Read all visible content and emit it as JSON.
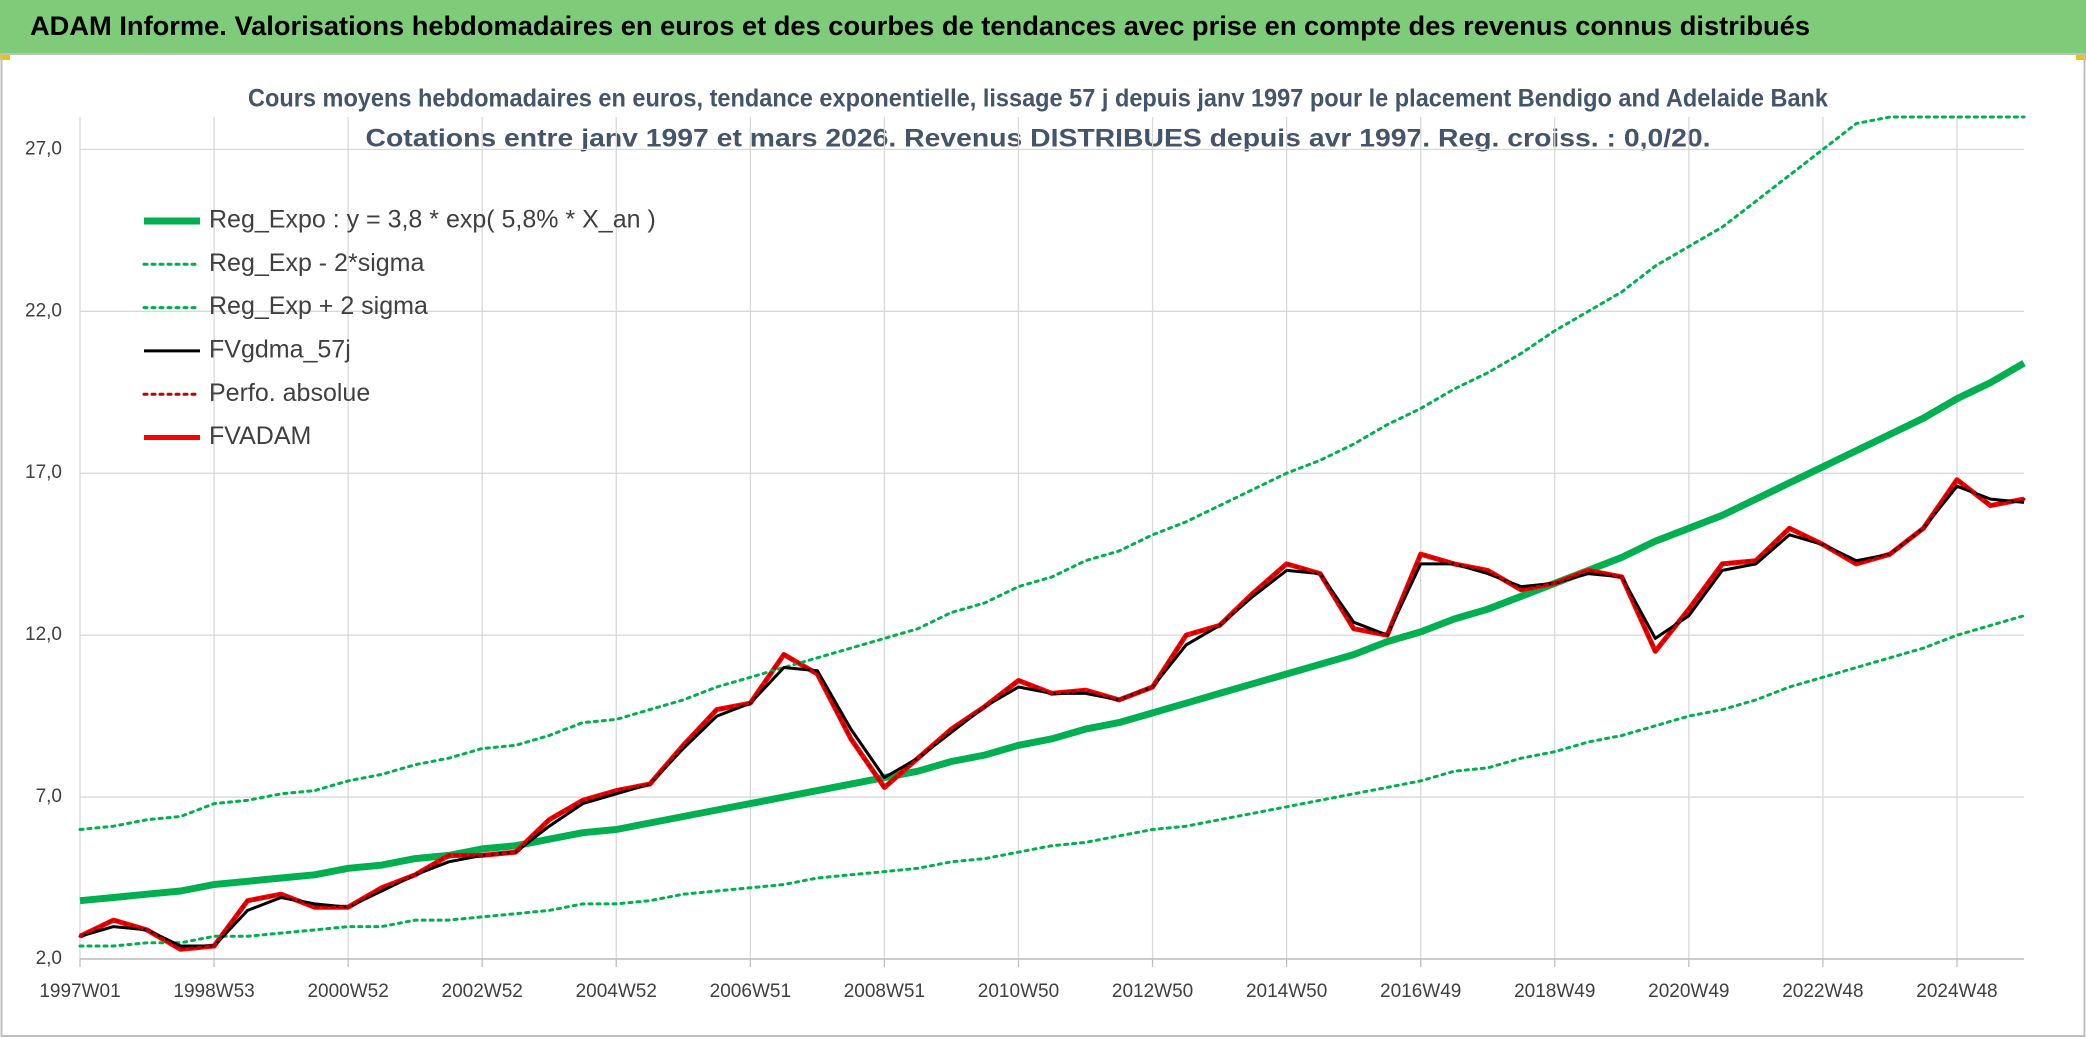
{
  "chart_data": {
    "type": "line",
    "header": "ADAM Informe. Valorisations hebdomadaires en euros et des courbes de tendances avec prise en compte des revenus connus distribués",
    "title": "Cours moyens hebdomadaires en euros, tendance exponentielle, lissage 57 j depuis janv 1997 pour le placement Bendigo and Adelaide Bank",
    "subtitle": "Cotations entre janv 1997 et mars 2026. Revenus DISTRIBUES depuis avr 1997. Reg. croiss. : 0,0/20.",
    "categories": [
      "1997W01",
      null,
      null,
      null,
      "1998W53",
      null,
      null,
      null,
      "2000W52",
      null,
      null,
      null,
      "2002W52",
      null,
      null,
      null,
      "2004W52",
      null,
      null,
      null,
      "2006W51",
      null,
      null,
      null,
      "2008W51",
      null,
      null,
      null,
      "2010W50",
      null,
      null,
      null,
      "2012W50",
      null,
      null,
      null,
      "2014W50",
      null,
      null,
      null,
      "2016W49",
      null,
      null,
      null,
      "2018W49",
      null,
      null,
      null,
      "2020W49",
      null,
      null,
      null,
      "2022W48",
      null,
      null,
      null,
      "2024W48",
      null,
      null
    ],
    "ylim": [
      2,
      28
    ],
    "yticks": [
      {
        "value": 2,
        "label": "2,0"
      },
      {
        "value": 7,
        "label": "7,0"
      },
      {
        "value": 12,
        "label": "12,0"
      },
      {
        "value": 17,
        "label": "17,0"
      },
      {
        "value": 22,
        "label": "22,0"
      },
      {
        "value": 27,
        "label": "27,0"
      }
    ],
    "grid": true,
    "legend": "upper left",
    "series": [
      {
        "name": "Reg_Expo : y = 3,8 * exp( 5,8% *  X_an )",
        "color": "#00b050",
        "line_style": "solid",
        "weight": "bold",
        "values": [
          3.8,
          3.9,
          4.0,
          4.1,
          4.3,
          4.4,
          4.5,
          4.6,
          4.8,
          4.9,
          5.1,
          5.2,
          5.4,
          5.5,
          5.7,
          5.9,
          6.0,
          6.2,
          6.4,
          6.6,
          6.8,
          7.0,
          7.2,
          7.4,
          7.6,
          7.8,
          8.1,
          8.3,
          8.6,
          8.8,
          9.1,
          9.3,
          9.6,
          9.9,
          10.2,
          10.5,
          10.8,
          11.1,
          11.4,
          11.8,
          12.1,
          12.5,
          12.8,
          13.2,
          13.6,
          14.0,
          14.4,
          14.9,
          15.3,
          15.7,
          16.2,
          16.7,
          17.2,
          17.7,
          18.2,
          18.7,
          19.3,
          19.8,
          20.4
        ]
      },
      {
        "name": "Reg_Exp - 2*sigma",
        "color": "#00b050",
        "line_style": "dotted",
        "weight": "normal",
        "values": [
          2.4,
          2.4,
          2.5,
          2.5,
          2.7,
          2.7,
          2.8,
          2.9,
          3.0,
          3.0,
          3.2,
          3.2,
          3.3,
          3.4,
          3.5,
          3.7,
          3.7,
          3.8,
          4.0,
          4.1,
          4.2,
          4.3,
          4.5,
          4.6,
          4.7,
          4.8,
          5.0,
          5.1,
          5.3,
          5.5,
          5.6,
          5.8,
          6.0,
          6.1,
          6.3,
          6.5,
          6.7,
          6.9,
          7.1,
          7.3,
          7.5,
          7.8,
          7.9,
          8.2,
          8.4,
          8.7,
          8.9,
          9.2,
          9.5,
          9.7,
          10.0,
          10.4,
          10.7,
          11.0,
          11.3,
          11.6,
          12.0,
          12.3,
          12.6
        ]
      },
      {
        "name": "Reg_Exp + 2 sigma",
        "color": "#00b050",
        "line_style": "dotted",
        "weight": "normal",
        "values": [
          6.0,
          6.1,
          6.3,
          6.4,
          6.8,
          6.9,
          7.1,
          7.2,
          7.5,
          7.7,
          8.0,
          8.2,
          8.5,
          8.6,
          8.9,
          9.3,
          9.4,
          9.7,
          10.0,
          10.4,
          10.7,
          11.0,
          11.3,
          11.6,
          11.9,
          12.2,
          12.7,
          13.0,
          13.5,
          13.8,
          14.3,
          14.6,
          15.1,
          15.5,
          16.0,
          16.5,
          17.0,
          17.4,
          17.9,
          18.5,
          19.0,
          19.6,
          20.1,
          20.7,
          21.4,
          22.0,
          22.6,
          23.4,
          24.0,
          24.6,
          25.4,
          26.2,
          27.0,
          27.8,
          28,
          28,
          28,
          28,
          28
        ]
      },
      {
        "name": "FVgdma_57j",
        "color": "#000000",
        "line_style": "solid",
        "weight": "normal",
        "values": [
          2.7,
          3.0,
          2.9,
          2.4,
          2.4,
          3.5,
          3.9,
          3.7,
          3.6,
          4.1,
          4.6,
          5.0,
          5.2,
          5.3,
          6.1,
          6.8,
          7.1,
          7.4,
          8.5,
          9.5,
          9.9,
          11.0,
          10.9,
          9.1,
          7.6,
          8.2,
          9.0,
          9.8,
          10.4,
          10.2,
          10.2,
          10.0,
          10.4,
          11.7,
          12.3,
          13.2,
          14.0,
          13.9,
          12.4,
          12.0,
          14.2,
          14.2,
          13.9,
          13.5,
          13.6,
          13.9,
          13.8,
          11.9,
          12.6,
          14.0,
          14.2,
          15.1,
          14.8,
          14.3,
          14.5,
          15.3,
          16.6,
          16.2,
          16.1
        ]
      },
      {
        "name": "Perfo. absolue",
        "color": "#c00000",
        "line_style": "dotted",
        "weight": "normal",
        "values": [
          2.7,
          3.2,
          2.9,
          2.3,
          2.4,
          3.8,
          4.0,
          3.6,
          3.6,
          4.2,
          4.6,
          5.2,
          5.2,
          5.3,
          6.3,
          6.9,
          7.2,
          7.4,
          8.6,
          9.7,
          9.9,
          11.4,
          10.8,
          8.8,
          7.3,
          8.2,
          9.1,
          9.8,
          10.6,
          10.2,
          10.3,
          10.0,
          10.4,
          12.0,
          12.3,
          13.3,
          14.2,
          13.9,
          12.2,
          12.0,
          14.5,
          14.2,
          14.0,
          13.4,
          13.6,
          14.0,
          13.8,
          11.5,
          12.8,
          14.2,
          14.3,
          15.3,
          14.8,
          14.2,
          14.5,
          15.3,
          16.8,
          16.0,
          16.2
        ]
      },
      {
        "name": "FVADAM",
        "color": "#ff0000",
        "line_style": "solid",
        "weight": "bold",
        "values": [
          2.7,
          3.2,
          2.9,
          2.3,
          2.4,
          3.8,
          4.0,
          3.6,
          3.6,
          4.2,
          4.6,
          5.2,
          5.2,
          5.3,
          6.3,
          6.9,
          7.2,
          7.4,
          8.6,
          9.7,
          9.9,
          11.4,
          10.8,
          8.8,
          7.3,
          8.2,
          9.1,
          9.8,
          10.6,
          10.2,
          10.3,
          10.0,
          10.4,
          12.0,
          12.3,
          13.3,
          14.2,
          13.9,
          12.2,
          12.0,
          14.5,
          14.2,
          14.0,
          13.4,
          13.6,
          14.0,
          13.8,
          11.5,
          12.8,
          14.2,
          14.3,
          15.3,
          14.8,
          14.2,
          14.5,
          15.3,
          16.8,
          16.0,
          16.2
        ]
      }
    ]
  }
}
